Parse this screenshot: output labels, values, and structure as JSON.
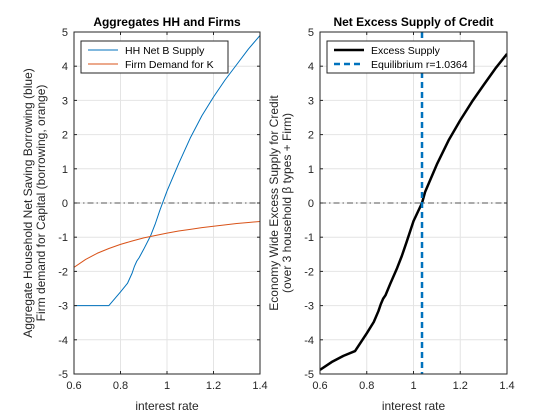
{
  "chart_data": [
    {
      "type": "line",
      "title": "Aggregates HH and Firms",
      "xlabel": "interest rate",
      "ylabel_lines": [
        "Aggregate Household Net Saving Borrowing (blue)",
        "Firm demand for Capital (borrowing, orange)"
      ],
      "xlim": [
        0.6,
        1.4
      ],
      "ylim": [
        -5,
        5
      ],
      "xticks": [
        0.6,
        0.8,
        1,
        1.2,
        1.4
      ],
      "xtick_labels": [
        "0.6",
        "0.8",
        "1",
        "1.2",
        "1.4"
      ],
      "yticks": [
        -5,
        -4,
        -3,
        -2,
        -1,
        0,
        1,
        2,
        3,
        4,
        5
      ],
      "ytick_labels": [
        "-5",
        "-4",
        "-3",
        "-2",
        "-1",
        "0",
        "1",
        "2",
        "3",
        "4",
        "5"
      ],
      "grid": true,
      "legend_position": "top-left",
      "reference_lines": [
        {
          "axis": "y",
          "value": 0,
          "color": "#555555",
          "style": "dashdot"
        }
      ],
      "series": [
        {
          "name": "HH Net B Supply",
          "color": "#0072BD",
          "width": 1,
          "x": [
            0.6,
            0.7,
            0.75,
            0.8,
            0.83,
            0.85,
            0.86,
            0.87,
            0.88,
            0.9,
            0.93,
            0.95,
            0.97,
            1.0,
            1.05,
            1.1,
            1.15,
            1.2,
            1.25,
            1.3,
            1.35,
            1.4
          ],
          "y": [
            -3.0,
            -3.0,
            -3.0,
            -2.6,
            -2.35,
            -2.05,
            -1.85,
            -1.7,
            -1.6,
            -1.35,
            -0.95,
            -0.6,
            -0.2,
            0.35,
            1.15,
            1.9,
            2.55,
            3.1,
            3.6,
            4.05,
            4.5,
            4.9
          ]
        },
        {
          "name": "Firm Demand for K",
          "color": "#D95319",
          "width": 1,
          "x": [
            0.6,
            0.65,
            0.7,
            0.75,
            0.8,
            0.85,
            0.9,
            0.95,
            1.0,
            1.05,
            1.1,
            1.15,
            1.2,
            1.25,
            1.3,
            1.35,
            1.4
          ],
          "y": [
            -1.88,
            -1.65,
            -1.47,
            -1.33,
            -1.21,
            -1.11,
            -1.02,
            -0.95,
            -0.88,
            -0.82,
            -0.77,
            -0.72,
            -0.68,
            -0.64,
            -0.6,
            -0.57,
            -0.54
          ]
        }
      ]
    },
    {
      "type": "line",
      "title": "Net Excess Supply of Credit",
      "xlabel": "interest rate",
      "ylabel_lines": [
        "Economy Wide Excess Supply for Credit",
        "(over 3 household β types + Firm)"
      ],
      "xlim": [
        0.6,
        1.4
      ],
      "ylim": [
        -5,
        5
      ],
      "xticks": [
        0.6,
        0.8,
        1,
        1.2,
        1.4
      ],
      "xtick_labels": [
        "0.6",
        "0.8",
        "1",
        "1.2",
        "1.4"
      ],
      "yticks": [
        -5,
        -4,
        -3,
        -2,
        -1,
        0,
        1,
        2,
        3,
        4,
        5
      ],
      "ytick_labels": [
        "-5",
        "-4",
        "-3",
        "-2",
        "-1",
        "0",
        "1",
        "2",
        "3",
        "4",
        "5"
      ],
      "grid": true,
      "legend_position": "top-left",
      "reference_lines": [
        {
          "axis": "y",
          "value": 0,
          "color": "#555555",
          "style": "dashdot"
        }
      ],
      "series": [
        {
          "name": "Excess Supply",
          "color": "#000000",
          "width": 2.5,
          "x": [
            0.6,
            0.65,
            0.7,
            0.75,
            0.8,
            0.83,
            0.85,
            0.86,
            0.87,
            0.88,
            0.9,
            0.93,
            0.95,
            0.97,
            1.0,
            1.0364,
            1.05,
            1.1,
            1.15,
            1.2,
            1.25,
            1.3,
            1.35,
            1.4
          ],
          "y": [
            -4.88,
            -4.65,
            -4.47,
            -4.33,
            -3.81,
            -3.48,
            -3.16,
            -2.96,
            -2.8,
            -2.7,
            -2.37,
            -1.9,
            -1.55,
            -1.15,
            -0.53,
            0.0,
            0.33,
            1.13,
            1.83,
            2.42,
            2.96,
            3.45,
            3.93,
            4.36
          ]
        },
        {
          "name": "Equilibrium r=1.0364",
          "color": "#0072BD",
          "width": 2.5,
          "style": "dashed",
          "vertical_x": 1.0364
        }
      ]
    }
  ]
}
